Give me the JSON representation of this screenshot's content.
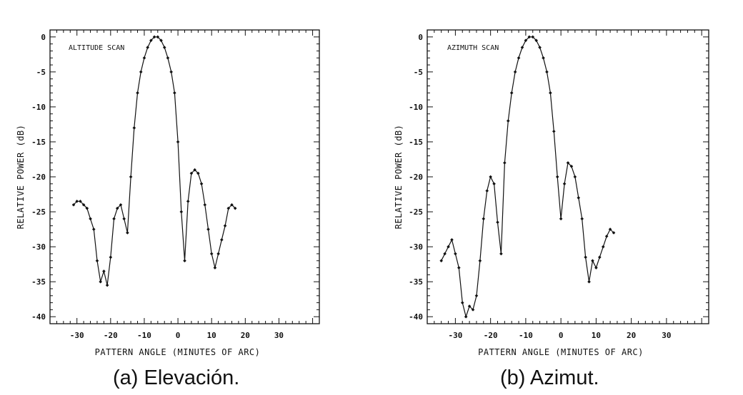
{
  "figure": {
    "caption_a": "(a) Elevación.",
    "caption_b": "(b) Azimut."
  },
  "chart_data": [
    {
      "type": "line",
      "annotation": "ALTITUDE SCAN",
      "xlabel": "PATTERN ANGLE (MINUTES OF ARC)",
      "ylabel": "RELATIVE POWER (dB)",
      "xlim": [
        -38,
        42
      ],
      "ylim": [
        -41,
        1
      ],
      "xticks": [
        -30,
        -20,
        -10,
        0,
        10,
        20,
        30
      ],
      "yticks": [
        0,
        -5,
        -10,
        -15,
        -20,
        -25,
        -30,
        -35,
        -40
      ],
      "grid": false,
      "x": [
        -31,
        -30,
        -29,
        -28,
        -27,
        -26,
        -25,
        -24,
        -23,
        -22,
        -21,
        -20,
        -19,
        -18,
        -17,
        -16,
        -15,
        -14,
        -13,
        -12,
        -11,
        -10,
        -9,
        -8,
        -7,
        -6,
        -5,
        -4,
        -3,
        -2,
        -1,
        0,
        1,
        2,
        3,
        4,
        5,
        6,
        7,
        8,
        9,
        10,
        11,
        12,
        13,
        14,
        15,
        16,
        17,
        18,
        19,
        20,
        21,
        22,
        23,
        24,
        25,
        26,
        27,
        28,
        29,
        30,
        31
      ],
      "y": [
        -24,
        -23.5,
        -23.5,
        -24,
        -24.5,
        -26,
        -27.5,
        -32,
        -35,
        -33.5,
        -35.5,
        -31.5,
        -26,
        -24.5,
        -24,
        -26,
        -28,
        -20,
        -13,
        -8,
        -5,
        -3,
        -1.5,
        -0.5,
        0,
        0,
        -0.5,
        -1.5,
        -3,
        -5,
        -8,
        -15,
        -25,
        -32,
        -23.5,
        -19.5,
        -19,
        -19.5,
        -21,
        -24,
        -27.5,
        -31,
        -33,
        -31,
        -29,
        -27,
        -24.5,
        -24,
        -24.5,
        null,
        null,
        null,
        null,
        null,
        null,
        null,
        null,
        null,
        null,
        null,
        null,
        null,
        null
      ]
    },
    {
      "type": "line",
      "annotation": "AZIMUTH SCAN",
      "xlabel": "PATTERN ANGLE (MINUTES OF ARC)",
      "ylabel": "RELATIVE POWER (dB)",
      "xlim": [
        -38,
        42
      ],
      "ylim": [
        -41,
        1
      ],
      "xticks": [
        -30,
        -20,
        -10,
        0,
        10,
        20,
        30
      ],
      "yticks": [
        0,
        -5,
        -10,
        -15,
        -20,
        -25,
        -30,
        -35,
        -40
      ],
      "grid": false,
      "x": [
        -34,
        -33,
        -32,
        -31,
        -30,
        -29,
        -28,
        -27,
        -26,
        -25,
        -24,
        -23,
        -22,
        -21,
        -20,
        -19,
        -18,
        -17,
        -16,
        -15,
        -14,
        -13,
        -12,
        -11,
        -10,
        -9,
        -8,
        -7,
        -6,
        -5,
        -4,
        -3,
        -2,
        -1,
        0,
        1,
        2,
        3,
        4,
        5,
        6,
        7,
        8,
        9,
        10,
        11,
        12,
        13,
        14,
        15,
        16,
        17,
        18,
        19,
        20,
        21,
        22,
        23,
        24,
        25,
        26,
        27,
        28,
        29,
        30,
        31
      ],
      "y": [
        -32,
        -31,
        -30,
        -29,
        -31,
        -33,
        -38,
        -40,
        -38.5,
        -39,
        -37,
        -32,
        -26,
        -22,
        -20,
        -21,
        -26.5,
        -31,
        -18,
        -12,
        -8,
        -5,
        -3,
        -1.5,
        -0.5,
        0,
        0,
        -0.5,
        -1.5,
        -3,
        -5,
        -8,
        -13.5,
        -20,
        -26,
        -21,
        -18,
        -18.5,
        -20,
        -23,
        -26,
        -31.5,
        -35,
        -32,
        -33,
        -31.5,
        -30,
        -28.5,
        -27.5,
        -28,
        null,
        null,
        null,
        null,
        null,
        null,
        null,
        null,
        null,
        null,
        null,
        null,
        null,
        null,
        null,
        null
      ]
    }
  ]
}
